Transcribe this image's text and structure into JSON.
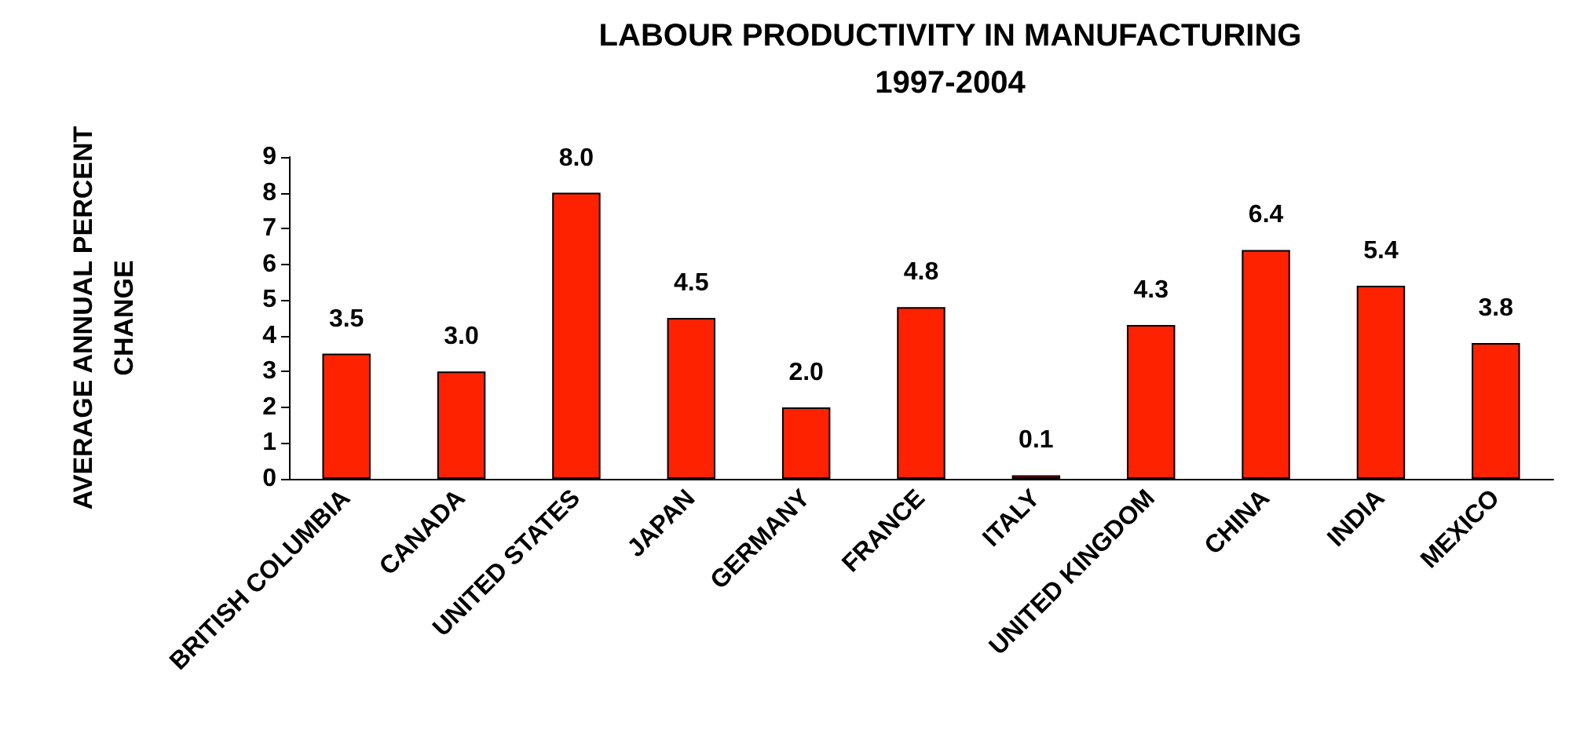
{
  "chart_data": {
    "type": "bar",
    "title": "LABOUR PRODUCTIVITY IN MANUFACTURING",
    "subtitle": "1997-2004",
    "ylabel": "AVERAGE ANNUAL PERCENT\nCHANGE",
    "categories": [
      "BRITISH COLUMBIA",
      "CANADA",
      "UNITED STATES",
      "JAPAN",
      "GERMANY",
      "FRANCE",
      "ITALY",
      "UNITED KINGDOM",
      "CHINA",
      "INDIA",
      "MEXICO"
    ],
    "values": [
      3.5,
      3.0,
      8.0,
      4.5,
      2.0,
      4.8,
      0.1,
      4.3,
      6.4,
      5.4,
      3.8
    ],
    "value_labels": [
      "3.5",
      "3.0",
      "8.0",
      "4.5",
      "2.0",
      "4.8",
      "0.1",
      "4.3",
      "6.4",
      "5.4",
      "3.8"
    ],
    "color": "#ff2200",
    "ylim": [
      0,
      9
    ],
    "yticks": [
      0,
      1,
      2,
      3,
      4,
      5,
      6,
      7,
      8,
      9
    ]
  }
}
